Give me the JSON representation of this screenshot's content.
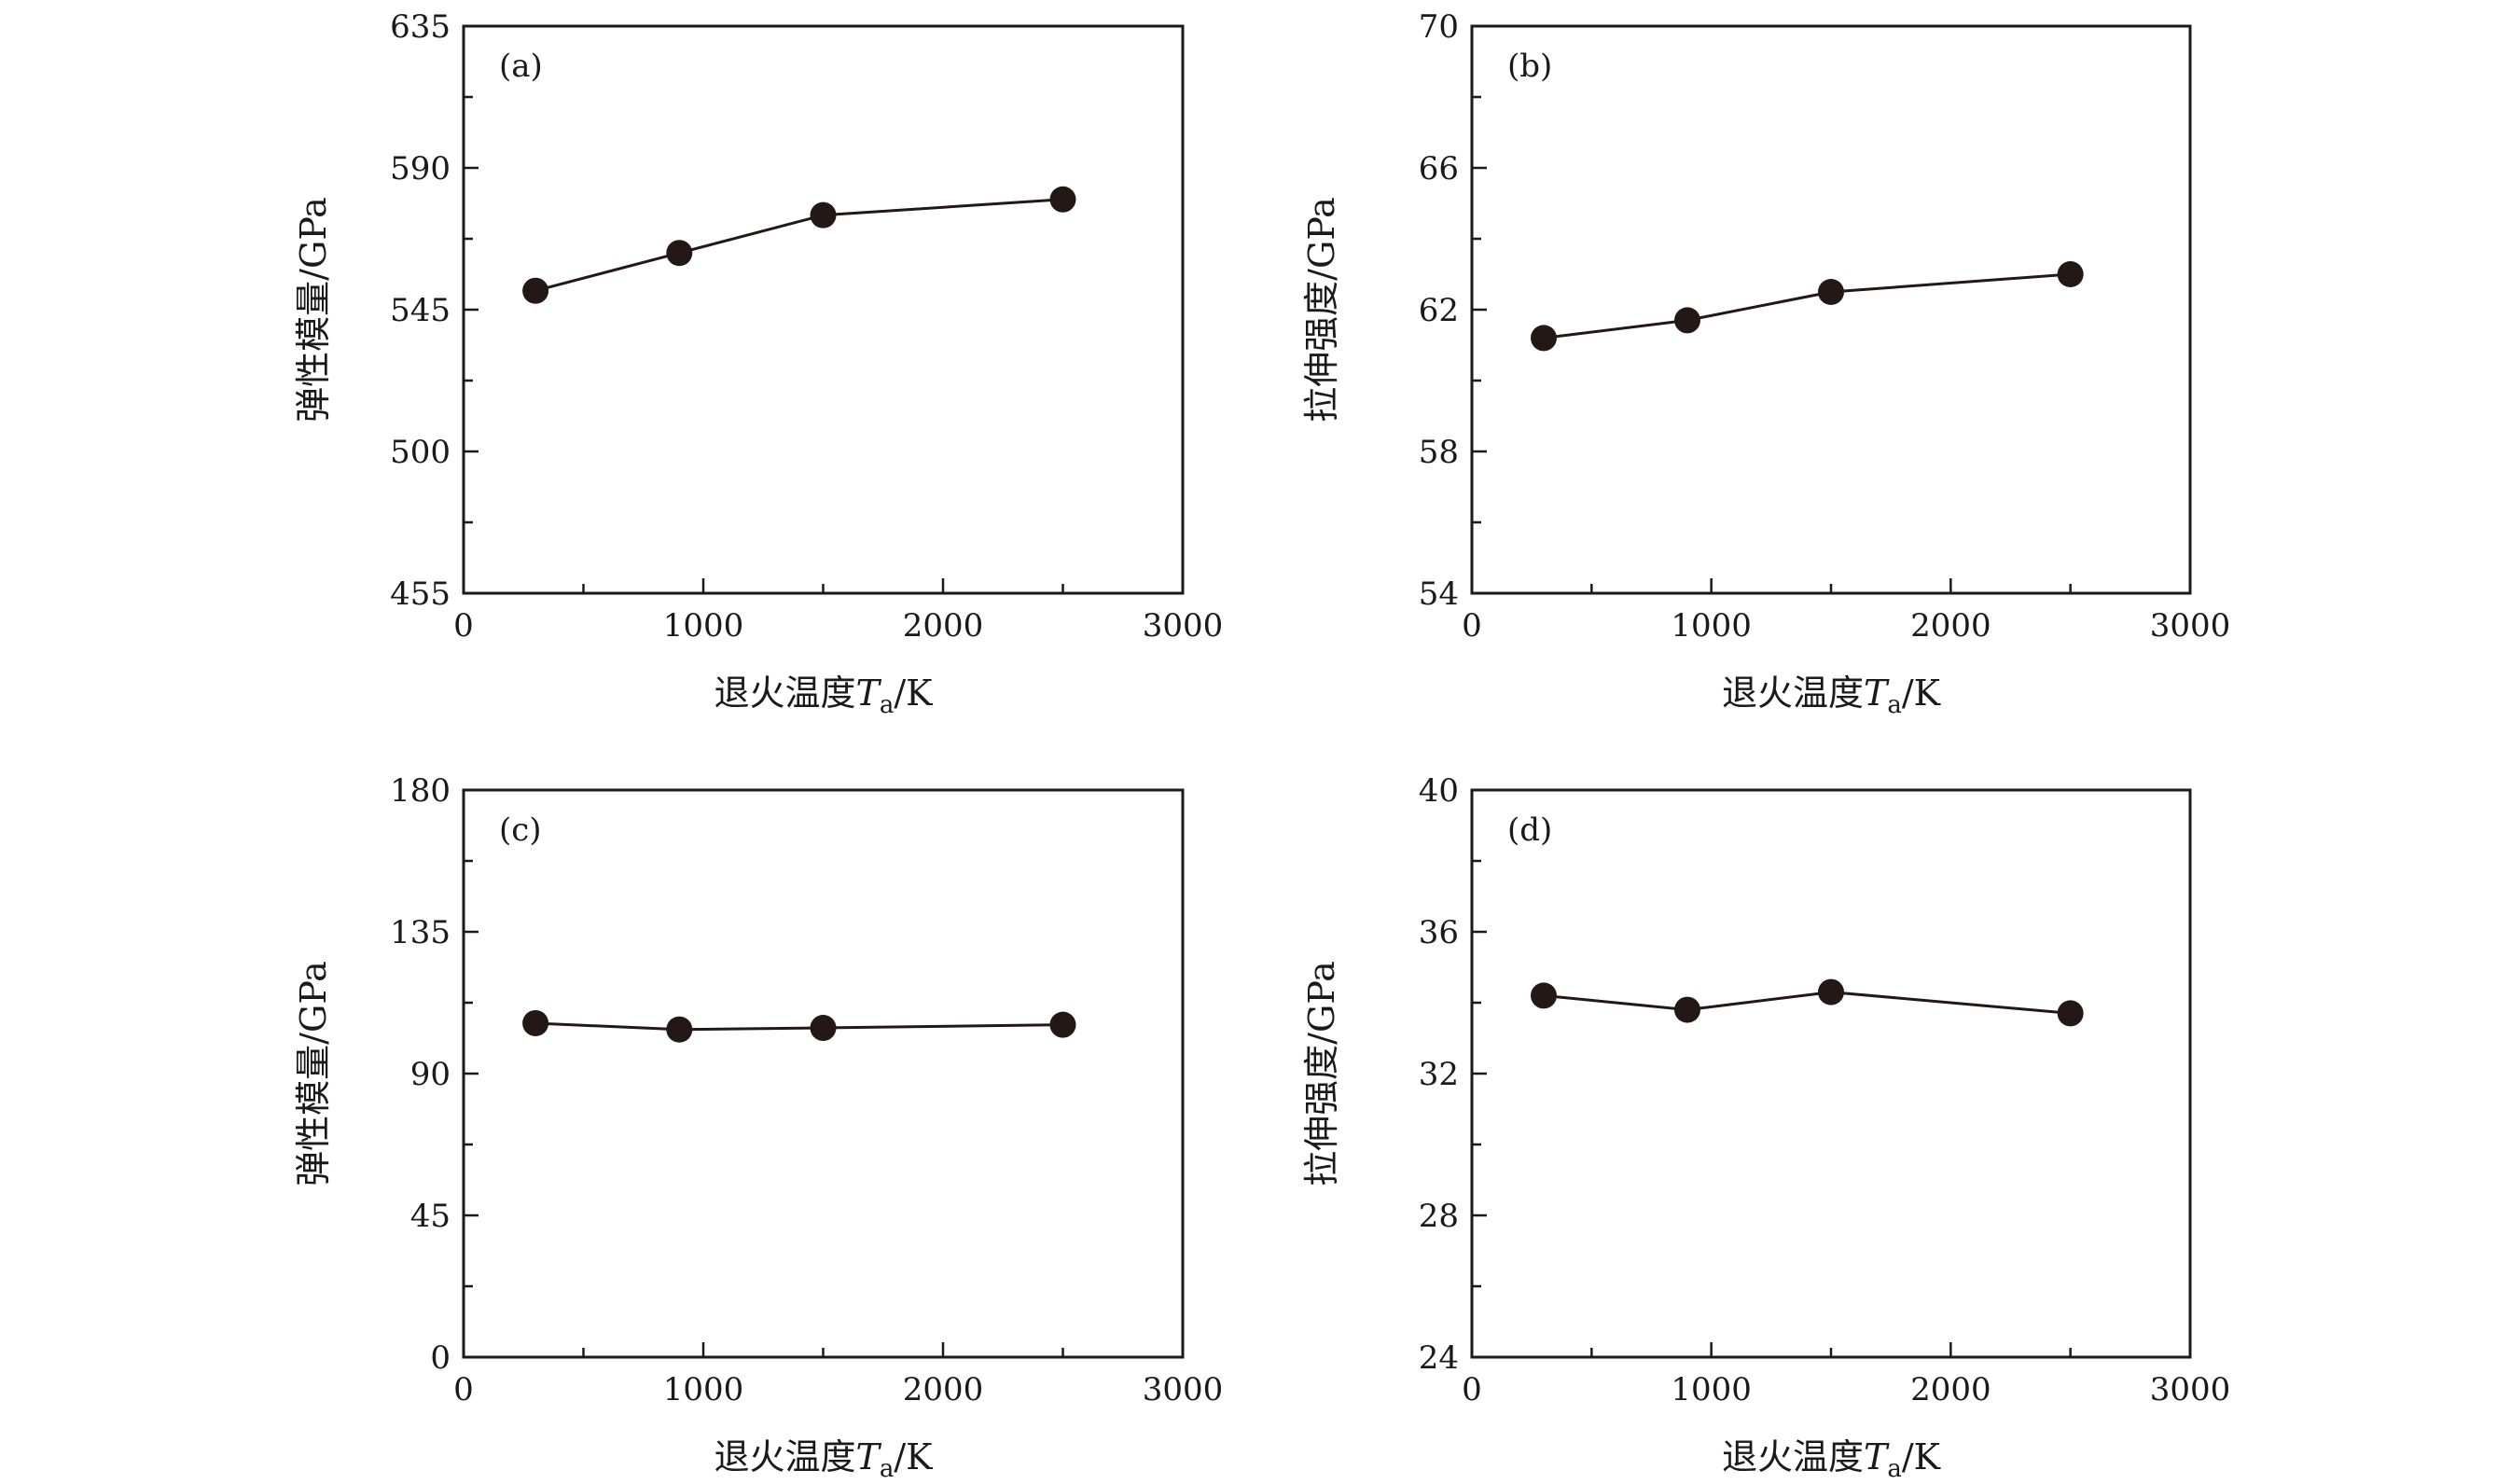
{
  "chart_data": [
    {
      "type": "line",
      "panel_label": "(a)",
      "xlabel": "退火温度",
      "xlabel_symbol": "T",
      "xlabel_subscript": "a",
      "xlabel_unit": "/K",
      "ylabel": "弹性模量/GPa",
      "xlim": [
        0,
        3000
      ],
      "ylim": [
        455,
        635
      ],
      "xticks": [
        "0",
        "1000",
        "2000",
        "3000"
      ],
      "yticks": [
        "455",
        "500",
        "545",
        "590",
        "635"
      ],
      "x": [
        300,
        900,
        1500,
        2500
      ],
      "y": [
        551,
        563,
        575,
        580
      ],
      "marker_color": "#231815",
      "line_color": "#231815"
    },
    {
      "type": "line",
      "panel_label": "(b)",
      "xlabel": "退火温度",
      "xlabel_symbol": "T",
      "xlabel_subscript": "a",
      "xlabel_unit": "/K",
      "ylabel": "拉伸强度/GPa",
      "xlim": [
        0,
        3000
      ],
      "ylim": [
        54,
        70
      ],
      "xticks": [
        "0",
        "1000",
        "2000",
        "3000"
      ],
      "yticks": [
        "54",
        "58",
        "62",
        "66",
        "70"
      ],
      "x": [
        300,
        900,
        1500,
        2500
      ],
      "y": [
        61.2,
        61.7,
        62.5,
        63.0
      ],
      "marker_color": "#231815",
      "line_color": "#231815"
    },
    {
      "type": "line",
      "panel_label": "(c)",
      "xlabel": "退火温度",
      "xlabel_symbol": "T",
      "xlabel_subscript": "a",
      "xlabel_unit": "/K",
      "ylabel": "弹性模量/GPa",
      "xlim": [
        0,
        3000
      ],
      "ylim": [
        0,
        180
      ],
      "xticks": [
        "0",
        "1000",
        "2000",
        "3000"
      ],
      "yticks": [
        "0",
        "45",
        "90",
        "135",
        "180"
      ],
      "x": [
        300,
        900,
        1500,
        2500
      ],
      "y": [
        106,
        104,
        104.5,
        105.5
      ],
      "marker_color": "#231815",
      "line_color": "#231815"
    },
    {
      "type": "line",
      "panel_label": "(d)",
      "xlabel": "退火温度",
      "xlabel_symbol": "T",
      "xlabel_subscript": "a",
      "xlabel_unit": "/K",
      "ylabel": "拉伸强度/GPa",
      "xlim": [
        0,
        3000
      ],
      "ylim": [
        24,
        40
      ],
      "xticks": [
        "0",
        "1000",
        "2000",
        "3000"
      ],
      "yticks": [
        "24",
        "28",
        "32",
        "36",
        "40"
      ],
      "x": [
        300,
        900,
        1500,
        2500
      ],
      "y": [
        34.2,
        33.8,
        34.3,
        33.7
      ],
      "marker_color": "#231815",
      "line_color": "#231815"
    }
  ]
}
